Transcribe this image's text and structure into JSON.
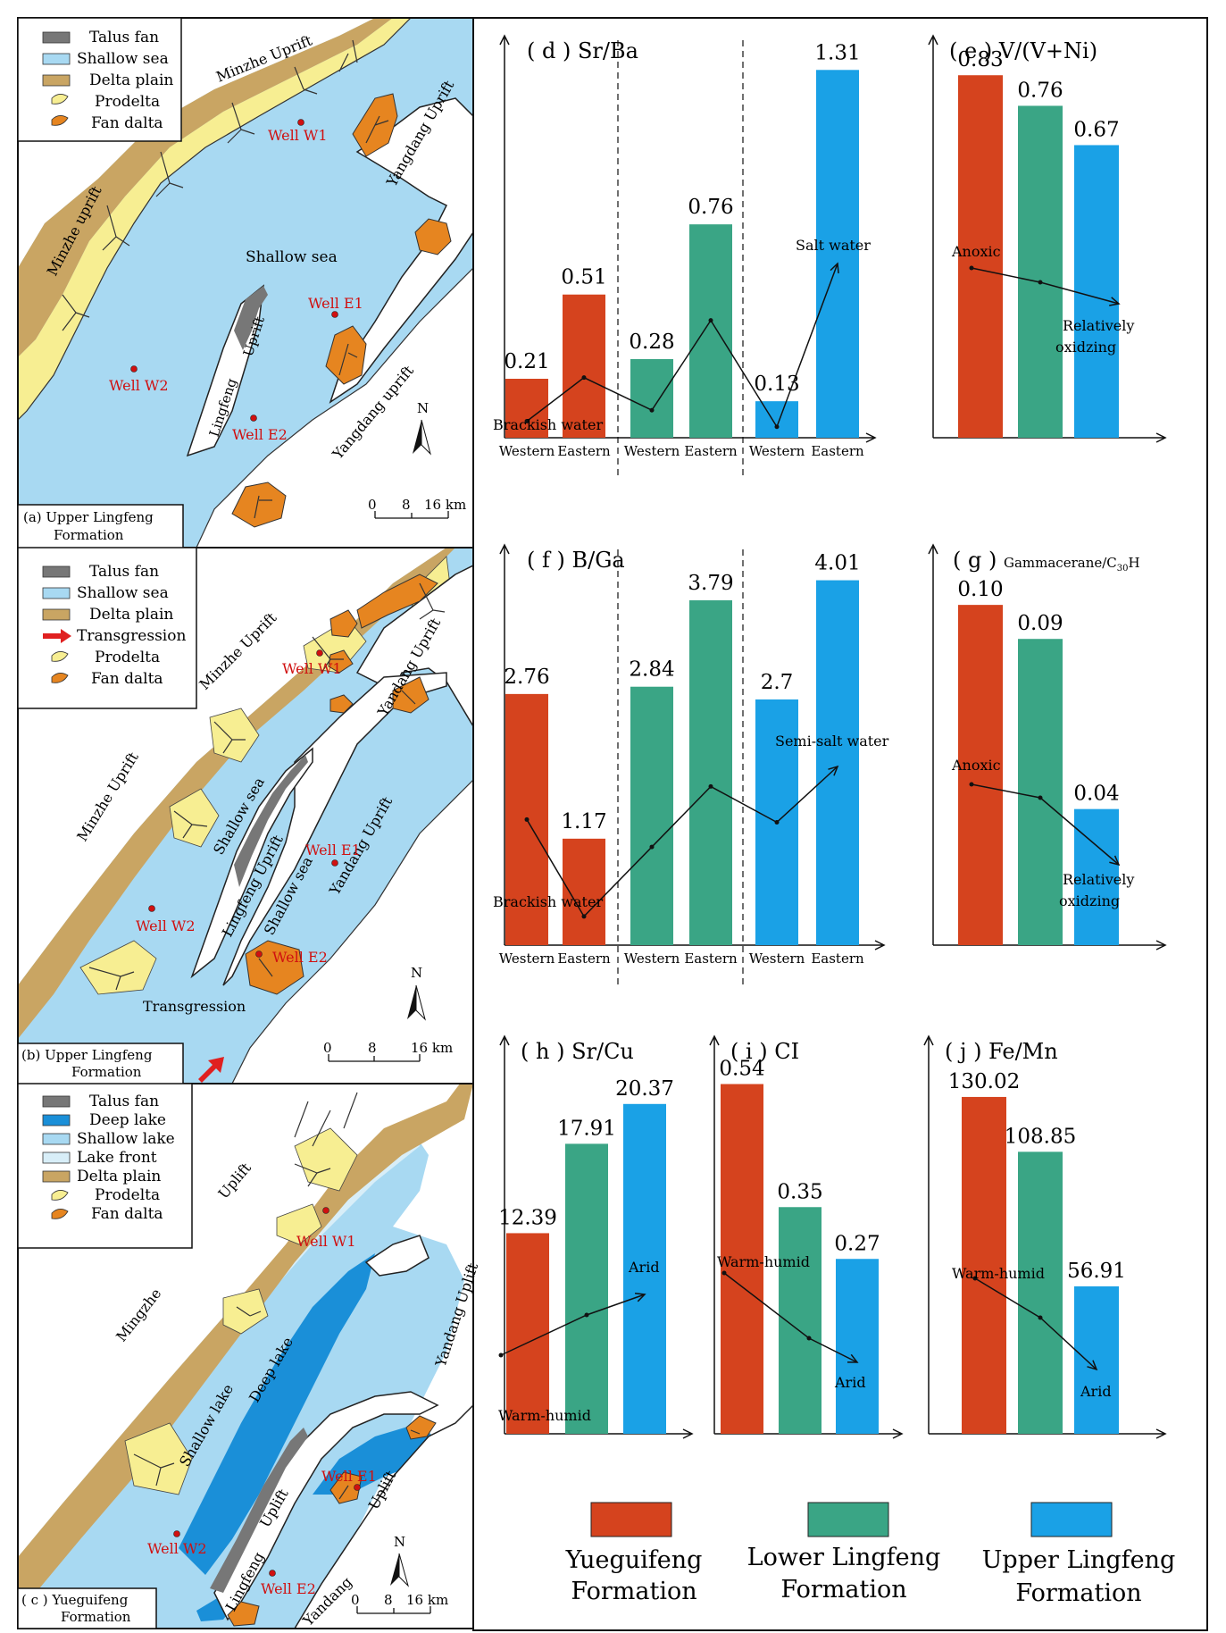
{
  "colors": {
    "yueguifeng": "#d5431e",
    "lower_lingfeng": "#3aa585",
    "upper_lingfeng": "#1aa1e6",
    "shallow_sea": "#a8d9f2",
    "deep_lake": "#1a8fd8",
    "lake_front": "#d8eef8",
    "delta_plain": "#c9a563",
    "prodelta": "#f7ee92",
    "fan_delta": "#e68520",
    "talus_fan": "#777777",
    "transgression": "#e02020"
  },
  "maps": [
    {
      "id": "a",
      "caption_lines": [
        "(a) Upper Lingfeng",
        "Formation"
      ],
      "legend": [
        "Talus fan",
        "Shallow sea",
        "Delta plain",
        "Prodelta",
        "Fan dalta"
      ],
      "legend_icons": [
        "talus",
        "sea",
        "delta",
        "prodelta",
        "fan"
      ],
      "labels": [
        "Minzhe Uprift",
        "Minzhe uprift",
        "Yangdang Uprift",
        "Yangdang uprift",
        "Shallow sea",
        "Lingfeng",
        "Uprift"
      ],
      "wells": [
        "Well W1",
        "Well E1",
        "Well W2",
        "Well E2"
      ],
      "north": "N",
      "scale": [
        "0",
        "8",
        "16 km"
      ]
    },
    {
      "id": "b",
      "caption_lines": [
        "(b) Upper Lingfeng",
        "Formation"
      ],
      "legend": [
        "Talus fan",
        "Shallow sea",
        "Delta plain",
        "Transgression",
        "Prodelta",
        "Fan dalta"
      ],
      "legend_icons": [
        "talus",
        "sea",
        "delta",
        "arrow",
        "prodelta",
        "fan"
      ],
      "labels": [
        "Minzhe Uprift",
        "Minzhe Uprift",
        "Yandang Uprift",
        "Yandang Uprift",
        "Shallow sea",
        "Shallow sea",
        "Lingfeng Uprift",
        "Transgression"
      ],
      "wells": [
        "Well W1",
        "Well E1",
        "Well W2",
        "Well E2"
      ],
      "north": "N",
      "scale": [
        "0",
        "8",
        "16 km"
      ]
    },
    {
      "id": "c",
      "caption_lines": [
        "( c ) Yueguifeng",
        "Formation"
      ],
      "legend": [
        "Talus fan",
        "Deep lake",
        "Shallow lake",
        "Lake front",
        "Delta plain",
        "Prodelta",
        "Fan dalta"
      ],
      "legend_icons": [
        "talus",
        "deep",
        "shallowlake",
        "front",
        "delta",
        "prodelta",
        "fan"
      ],
      "labels": [
        "Uplift",
        "Mingzhe",
        "Yandang Uplift",
        "Uplift",
        "Shallow lake",
        "Deep lake",
        "Uplift",
        "Lingfeng",
        "Yandang"
      ],
      "wells": [
        "Well W1",
        "Well E1",
        "Well W2",
        "Well E2"
      ],
      "north": "N",
      "scale": [
        "0",
        "8",
        "16 km"
      ]
    }
  ],
  "chart_data": [
    {
      "id": "d",
      "type": "bar",
      "title": "( d ) Sr/Ba",
      "groups": [
        "Yueguifeng Formation",
        "Lower Lingfeng Formation",
        "Upper Lingfeng Formation"
      ],
      "categories": [
        "Western",
        "Eastern"
      ],
      "series": [
        {
          "name": "Yueguifeng Formation",
          "values": [
            0.21,
            0.51
          ],
          "labels": [
            "0.21",
            "0.51"
          ]
        },
        {
          "name": "Lower Lingfeng Formation",
          "values": [
            0.28,
            0.76
          ],
          "labels": [
            "0.28",
            "0.76"
          ]
        },
        {
          "name": "Upper Lingfeng Formation",
          "values": [
            0.13,
            1.31
          ],
          "labels": [
            "0.13",
            "1.31"
          ]
        }
      ],
      "annotations": [
        "Brackish water",
        "Salt water"
      ],
      "ylim": [
        0,
        1.4
      ]
    },
    {
      "id": "e",
      "type": "bar",
      "title": "( e ) V/(V+Ni)",
      "categories": [
        "Yueguifeng Formation",
        "Lower Lingfeng Formation",
        "Upper Lingfeng Formation"
      ],
      "values": [
        0.83,
        0.76,
        0.67
      ],
      "labels": [
        "0.83",
        "0.76",
        "0.67"
      ],
      "annotations": [
        "Anoxic",
        "Relatively",
        "oxidzing"
      ],
      "ylim": [
        0,
        0.9
      ]
    },
    {
      "id": "f",
      "type": "bar",
      "title": "( f ) B/Ga",
      "groups": [
        "Yueguifeng Formation",
        "Lower Lingfeng Formation",
        "Upper Lingfeng Formation"
      ],
      "categories": [
        "Western",
        "Eastern"
      ],
      "series": [
        {
          "name": "Yueguifeng Formation",
          "values": [
            2.76,
            1.17
          ],
          "labels": [
            "2.76",
            "1.17"
          ]
        },
        {
          "name": "Lower Lingfeng Formation",
          "values": [
            2.84,
            3.79
          ],
          "labels": [
            "2.84",
            "3.79"
          ]
        },
        {
          "name": "Upper Lingfeng Formation",
          "values": [
            2.7,
            4.01
          ],
          "labels": [
            "2.7",
            "4.01"
          ]
        }
      ],
      "annotations": [
        "Brackish water",
        "Semi-salt water"
      ],
      "ylim": [
        0,
        4.3
      ]
    },
    {
      "id": "g",
      "type": "bar",
      "title": "( g ) Gammacerane/C",
      "title_sub": "30",
      "title_end": "H",
      "categories": [
        "Yueguifeng Formation",
        "Lower Lingfeng Formation",
        "Upper Lingfeng Formation"
      ],
      "values": [
        0.1,
        0.09,
        0.04
      ],
      "labels": [
        "0.10",
        "0.09",
        "0.04"
      ],
      "annotations": [
        "Anoxic",
        "Relatively",
        "oxidzing"
      ],
      "ylim": [
        0,
        0.115
      ]
    },
    {
      "id": "h",
      "type": "bar",
      "title": "( h ) Sr/Cu",
      "categories": [
        "Yueguifeng Formation",
        "Lower Lingfeng Formation",
        "Upper Lingfeng Formation"
      ],
      "values": [
        12.39,
        17.91,
        20.37
      ],
      "labels": [
        "12.39",
        "17.91",
        "20.37"
      ],
      "annotations": [
        "Warm-humid",
        "Arid"
      ],
      "ylim": [
        0,
        24
      ]
    },
    {
      "id": "i",
      "type": "bar",
      "title": "( i ) CI",
      "categories": [
        "Yueguifeng Formation",
        "Lower Lingfeng Formation",
        "Upper Lingfeng Formation"
      ],
      "values": [
        0.54,
        0.35,
        0.27
      ],
      "labels": [
        "0.54",
        "0.35",
        "0.27"
      ],
      "annotations": [
        "Warm-humid",
        "Arid"
      ],
      "ylim": [
        0,
        0.6
      ]
    },
    {
      "id": "j",
      "type": "bar",
      "title": "( j ) Fe/Mn",
      "categories": [
        "Yueguifeng Formation",
        "Lower Lingfeng Formation",
        "Upper Lingfeng Formation"
      ],
      "values": [
        130.02,
        108.85,
        56.91
      ],
      "labels": [
        "130.02",
        "108.85",
        "56.91"
      ],
      "annotations": [
        "Warm-humid",
        "Arid"
      ],
      "ylim": [
        0,
        150
      ]
    }
  ],
  "legend": {
    "items": [
      {
        "lines": [
          "Yueguifeng",
          "Formation"
        ],
        "color": "#d5431e"
      },
      {
        "lines": [
          "Lower Lingfeng",
          "Formation"
        ],
        "color": "#3aa585"
      },
      {
        "lines": [
          "Upper Lingfeng",
          "Formation"
        ],
        "color": "#1aa1e6"
      }
    ]
  }
}
